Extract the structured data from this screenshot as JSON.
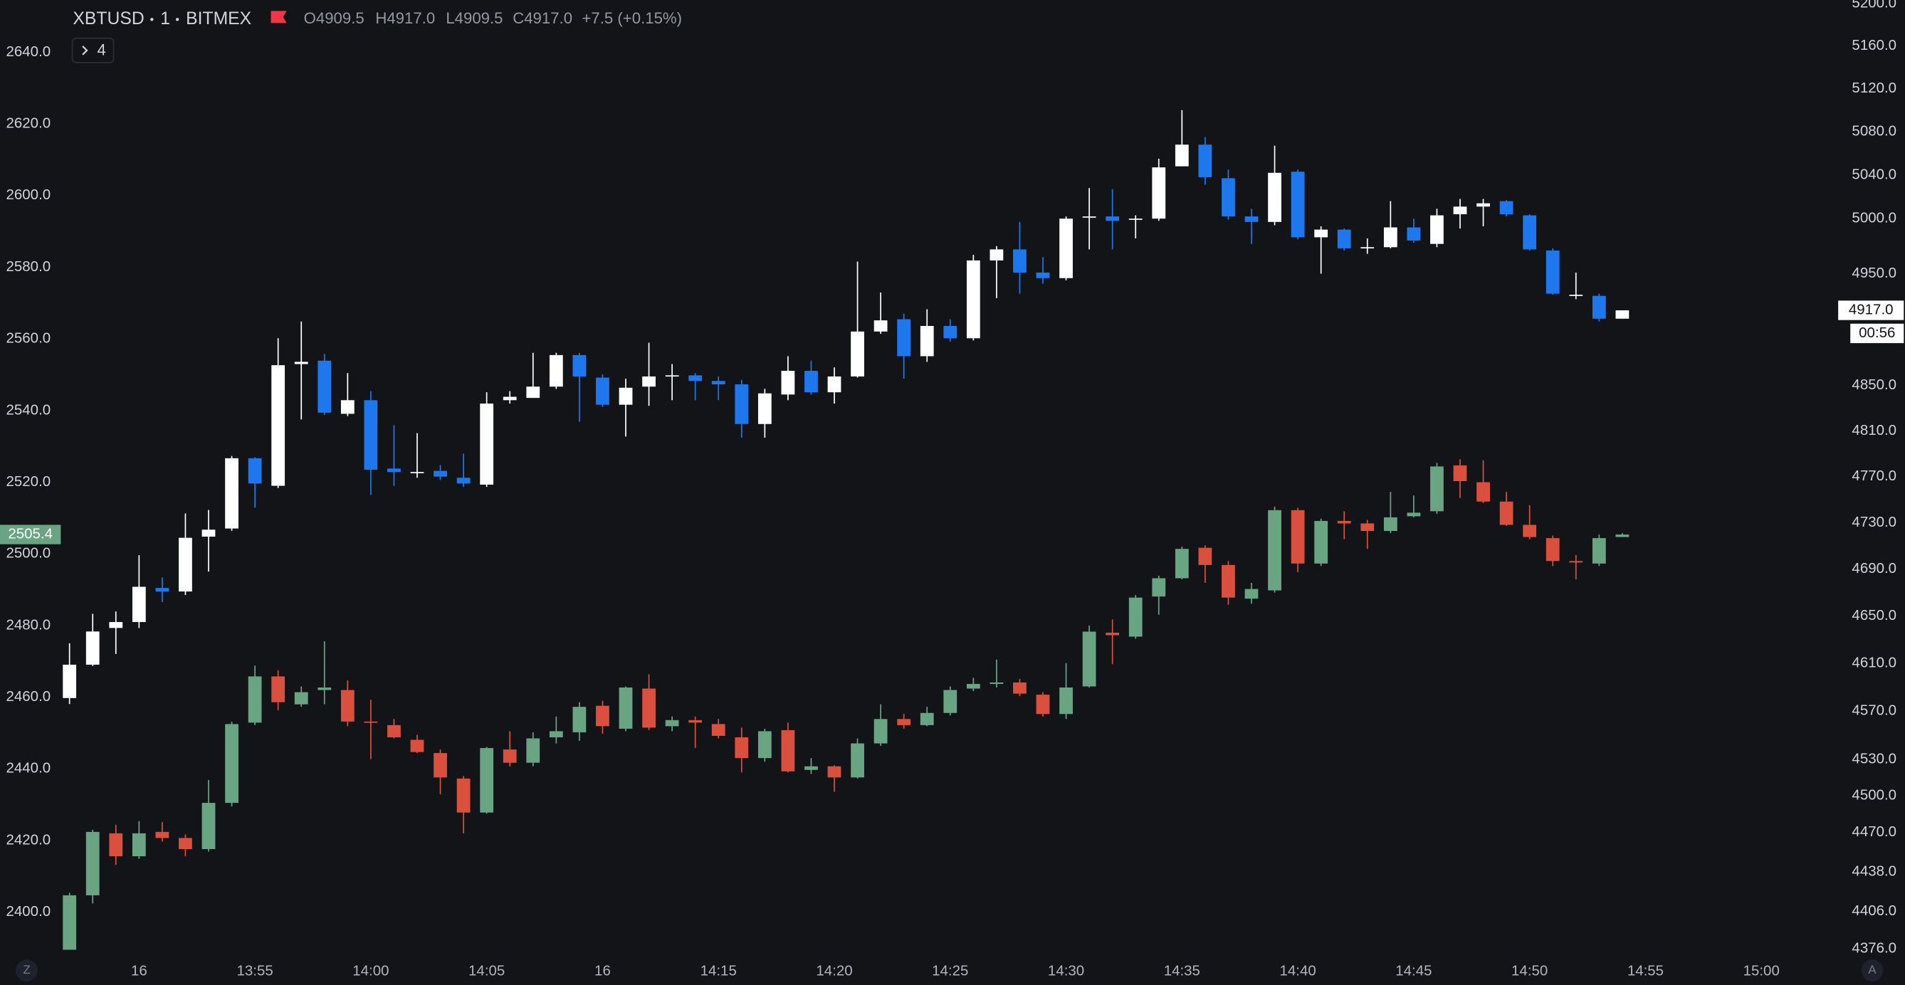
{
  "header": {
    "symbol": "XBTUSD",
    "interval": "1",
    "exchange": "BITMEX",
    "ohlc": [
      "O4909.5",
      "H4917.0",
      "L4909.5",
      "C4917.0"
    ],
    "change": "+7.5 (+0.15%)",
    "indicators_toggle": "4"
  },
  "controls": {
    "left_button": "Z",
    "right_button": "A"
  },
  "chart_data": {
    "type": "candlestick",
    "x": [
      "13:47",
      "13:48",
      "13:49",
      "13:50",
      "13:51",
      "13:52",
      "13:53",
      "13:54",
      "13:55",
      "13:56",
      "13:57",
      "13:58",
      "13:59",
      "14:00",
      "14:01",
      "14:02",
      "14:03",
      "14:04",
      "14:05",
      "14:06",
      "14:07",
      "14:08",
      "14:09",
      "14:10",
      "14:11",
      "14:12",
      "14:13",
      "14:14",
      "14:15",
      "14:16",
      "14:17",
      "14:18",
      "14:19",
      "14:20",
      "14:21",
      "14:22",
      "14:23",
      "14:24",
      "14:25",
      "14:26",
      "14:27",
      "14:28",
      "14:29",
      "14:30",
      "14:31",
      "14:32",
      "14:33",
      "14:34",
      "14:35",
      "14:36",
      "14:37",
      "14:38",
      "14:39",
      "14:40",
      "14:41",
      "14:42",
      "14:43",
      "14:44",
      "14:45",
      "14:46",
      "14:47",
      "14:48",
      "14:49",
      "14:50",
      "14:51",
      "14:52",
      "14:53",
      "14:54"
    ],
    "xlim": [
      "13:44",
      "15:03"
    ],
    "xticks": [
      {
        "value": "13:50",
        "label": "16"
      },
      "13:55",
      "14:00",
      "14:05",
      {
        "value": "14:10",
        "label": "16"
      },
      "14:15",
      "14:20",
      "14:25",
      "14:30",
      "14:35",
      "14:40",
      "14:45",
      "14:50",
      "14:55",
      "15:00"
    ],
    "ylim": [
      2387.8,
      2654.6
    ],
    "yticks": [
      {
        "value": 2400,
        "label": "2400.0"
      },
      {
        "value": 2420,
        "label": "2420.0"
      },
      {
        "value": 2440,
        "label": "2440.0"
      },
      {
        "value": 2460,
        "label": "2460.0"
      },
      {
        "value": 2480,
        "label": "2480.0"
      },
      {
        "value": 2500,
        "label": "2500.0"
      },
      {
        "value": 2520,
        "label": "2520.0"
      },
      {
        "value": 2540,
        "label": "2540.0"
      },
      {
        "value": 2560,
        "label": "2560.0"
      },
      {
        "value": 2580,
        "label": "2580.0"
      },
      {
        "value": 2600,
        "label": "2600.0"
      },
      {
        "value": 2620,
        "label": "2620.0"
      },
      {
        "value": 2640,
        "label": "2640.0"
      }
    ],
    "y2lim": [
      4370.4,
      5203.6
    ],
    "y2scale": "log",
    "y2ticks": [
      {
        "value": 4376,
        "label": "4376.0"
      },
      {
        "value": 4406,
        "label": "4406.0"
      },
      {
        "value": 4438,
        "label": "4438.0"
      },
      {
        "value": 4470,
        "label": "4470.0"
      },
      {
        "value": 4500,
        "label": "4500.0"
      },
      {
        "value": 4530,
        "label": "4530.0"
      },
      {
        "value": 4570,
        "label": "4570.0"
      },
      {
        "value": 4610,
        "label": "4610.0"
      },
      {
        "value": 4650,
        "label": "4650.0"
      },
      {
        "value": 4690,
        "label": "4690.0"
      },
      {
        "value": 4730,
        "label": "4730.0"
      },
      {
        "value": 4770,
        "label": "4770.0"
      },
      {
        "value": 4810,
        "label": "4810.0"
      },
      {
        "value": 4850,
        "label": "4850.0"
      },
      {
        "value": 4950,
        "label": "4950.0"
      },
      {
        "value": 5000,
        "label": "5000.0"
      },
      {
        "value": 5040,
        "label": "5040.0"
      },
      {
        "value": 5080,
        "label": "5080.0"
      },
      {
        "value": 5120,
        "label": "5120.0"
      },
      {
        "value": 5160,
        "label": "5160.0"
      },
      {
        "value": 5200,
        "label": "5200.0"
      }
    ],
    "grid": false,
    "countdown": "00:56",
    "series": [
      {
        "axis": "y2",
        "up_color": "#ffffff",
        "down_color": "#1f77ee",
        "last_label": "4917.0",
        "last_label_text_color": "#131418",
        "open": [
          4581,
          4609,
          4640,
          4645,
          4674,
          4671,
          4718,
          4725,
          4786,
          4762,
          4869,
          4872,
          4825,
          4837,
          4777,
          4774,
          4775,
          4769,
          4763,
          4837,
          4839,
          4849,
          4877,
          4857,
          4833,
          4849,
          4858,
          4859,
          4854,
          4851,
          4816,
          4842,
          4863,
          4844,
          4858,
          4898,
          4909,
          4876,
          4903,
          4892,
          4962,
          4972,
          4951,
          4946,
          5002,
          5002,
          4999,
          5000,
          5048,
          5068,
          5037,
          5002,
          4997,
          5043,
          4983,
          4990,
          4974,
          4974,
          4992,
          4977,
          5004,
          5011,
          5016,
          5003,
          4971,
          4931,
          4930,
          4909.5
        ],
        "high": [
          4627,
          4652,
          4654,
          4702,
          4683,
          4738,
          4741,
          4788,
          4787,
          4892,
          4907,
          4878,
          4861,
          4845,
          4815,
          4808,
          4780,
          4790,
          4844,
          4845,
          4879,
          4879,
          4879,
          4860,
          4856,
          4888,
          4869,
          4861,
          4858,
          4855,
          4847,
          4876,
          4872,
          4866,
          4961,
          4933,
          4914,
          4918,
          4909,
          4967,
          4975,
          4997,
          4965,
          5002,
          5028,
          5027,
          5003,
          5055,
          5100,
          5075,
          5045,
          5009,
          5067,
          5045,
          4993,
          4991,
          4982,
          5016,
          5000,
          5009,
          5018,
          5018,
          5017,
          5004,
          4973,
          4951,
          4932,
          4917
        ],
        "low": [
          4576,
          4608,
          4618,
          4640,
          4662,
          4668,
          4688,
          4723,
          4743,
          4760,
          4820,
          4824,
          4823,
          4754,
          4762,
          4769,
          4767,
          4761,
          4761,
          4834,
          4839,
          4847,
          4818,
          4831,
          4805,
          4832,
          4837,
          4837,
          4837,
          4804,
          4804,
          4837,
          4842,
          4834,
          4857,
          4896,
          4856,
          4871,
          4889,
          4890,
          4928,
          4932,
          4941,
          4944,
          4972,
          4972,
          4982,
          4998,
          5048,
          5031,
          4999,
          4977,
          4994,
          4981,
          4950,
          4971,
          4968,
          4973,
          4978,
          4974,
          4991,
          4993,
          5002,
          4971,
          4931,
          4927,
          4907,
          4909.5
        ],
        "close": [
          4609,
          4637,
          4645,
          4675,
          4671,
          4717,
          4724,
          4786,
          4764,
          4868,
          4871,
          4826,
          4837,
          4776,
          4774,
          4774,
          4770,
          4764,
          4834,
          4840,
          4849,
          4877,
          4858,
          4833,
          4848,
          4858,
          4859,
          4854,
          4851,
          4816,
          4843,
          4863,
          4844,
          4858,
          4898,
          4908,
          4876,
          4903,
          4892,
          4962,
          4972,
          4951,
          4946,
          5000,
          5002,
          4998,
          5000,
          5047,
          5068,
          5038,
          5002,
          4997,
          5042,
          4983,
          4990,
          4973,
          4974,
          4992,
          4980,
          5003,
          5011,
          5014,
          5004,
          4972,
          4932,
          4931,
          4909.5,
          4917
        ]
      },
      {
        "axis": "y",
        "up_color": "#6aa583",
        "down_color": "#d9513e",
        "last_label": "2505.4",
        "last_label_text_color": "#ffffff",
        "open": [
          2389.5,
          2404.7,
          2422.0,
          2415.6,
          2422.4,
          2420.7,
          2417.6,
          2430.5,
          2452.9,
          2465.8,
          2458.0,
          2462.0,
          2462.0,
          2453.2,
          2452.2,
          2448.1,
          2444.4,
          2437.3,
          2427.8,
          2445.4,
          2441.7,
          2448.8,
          2450.2,
          2457.6,
          2451.2,
          2462.4,
          2451.9,
          2453.6,
          2452.5,
          2448.8,
          2443.0,
          2450.8,
          2439.7,
          2440.7,
          2437.6,
          2447.1,
          2453.9,
          2452.2,
          2455.6,
          2462.4,
          2463.7,
          2464.1,
          2460.7,
          2455.3,
          2463.0,
          2478.0,
          2476.9,
          2488.1,
          2493.2,
          2501.7,
          2496.9,
          2487.5,
          2489.8,
          2512.2,
          2497.3,
          2509.2,
          2508.5,
          2506.4,
          2510.5,
          2511.9,
          2524.7,
          2520.0,
          2514.6,
          2508.1,
          2504.4,
          2498.0,
          2497.3,
          2504.7
        ],
        "high": [
          2405.4,
          2423.0,
          2424.4,
          2425.4,
          2425.1,
          2421.7,
          2436.9,
          2453.2,
          2468.8,
          2467.5,
          2463.0,
          2475.6,
          2464.7,
          2459.3,
          2453.9,
          2449.5,
          2445.4,
          2438.0,
          2446.1,
          2450.5,
          2450.2,
          2454.6,
          2458.6,
          2459.0,
          2463.0,
          2466.4,
          2454.6,
          2454.6,
          2453.9,
          2451.5,
          2451.2,
          2452.9,
          2443.0,
          2441.0,
          2448.5,
          2458.0,
          2455.3,
          2457.3,
          2463.0,
          2465.4,
          2470.5,
          2465.1,
          2461.4,
          2469.5,
          2480.0,
          2481.7,
          2488.5,
          2493.9,
          2502.0,
          2502.4,
          2498.0,
          2491.9,
          2513.2,
          2512.9,
          2509.8,
          2511.9,
          2509.5,
          2517.3,
          2516.3,
          2525.4,
          2526.4,
          2526.1,
          2517.3,
          2513.6,
          2505.1,
          2499.7,
          2505.4,
          2505.8
        ],
        "low": [
          2389.5,
          2402.4,
          2413.2,
          2414.9,
          2419.7,
          2415.6,
          2416.9,
          2429.5,
          2452.2,
          2456.3,
          2457.3,
          2458.0,
          2451.9,
          2442.7,
          2448.5,
          2444.4,
          2432.9,
          2422.0,
          2427.5,
          2440.7,
          2440.7,
          2447.1,
          2447.8,
          2449.8,
          2450.5,
          2450.8,
          2450.5,
          2445.8,
          2448.5,
          2439.0,
          2442.0,
          2439.0,
          2438.6,
          2433.6,
          2437.3,
          2446.4,
          2451.2,
          2451.9,
          2454.9,
          2461.7,
          2462.7,
          2460.3,
          2454.6,
          2453.9,
          2462.7,
          2469.2,
          2476.3,
          2483.0,
          2492.9,
          2491.9,
          2485.8,
          2486.1,
          2489.2,
          2494.9,
          2496.6,
          2504.1,
          2501.4,
          2505.8,
          2510.2,
          2511.2,
          2515.6,
          2514.2,
          2507.8,
          2504.1,
          2496.6,
          2492.9,
          2496.6,
          2504.7
        ],
        "close": [
          2404.7,
          2422.4,
          2415.6,
          2422.0,
          2420.7,
          2417.6,
          2430.5,
          2452.5,
          2465.8,
          2458.6,
          2461.4,
          2462.7,
          2453.2,
          2452.9,
          2448.8,
          2444.7,
          2437.6,
          2427.8,
          2445.8,
          2441.7,
          2448.5,
          2450.5,
          2457.3,
          2451.9,
          2462.7,
          2451.5,
          2453.6,
          2452.9,
          2449.2,
          2443.0,
          2450.5,
          2439.3,
          2440.7,
          2437.6,
          2447.1,
          2453.9,
          2452.2,
          2455.6,
          2462.0,
          2463.7,
          2464.1,
          2461.0,
          2455.3,
          2462.7,
          2478.3,
          2477.3,
          2487.8,
          2493.2,
          2501.4,
          2496.9,
          2487.8,
          2490.2,
          2512.2,
          2497.3,
          2509.2,
          2508.5,
          2506.4,
          2510.2,
          2511.5,
          2524.4,
          2520.3,
          2514.6,
          2508.1,
          2504.7,
          2498.0,
          2497.6,
          2504.4,
          2505.4
        ]
      }
    ]
  }
}
